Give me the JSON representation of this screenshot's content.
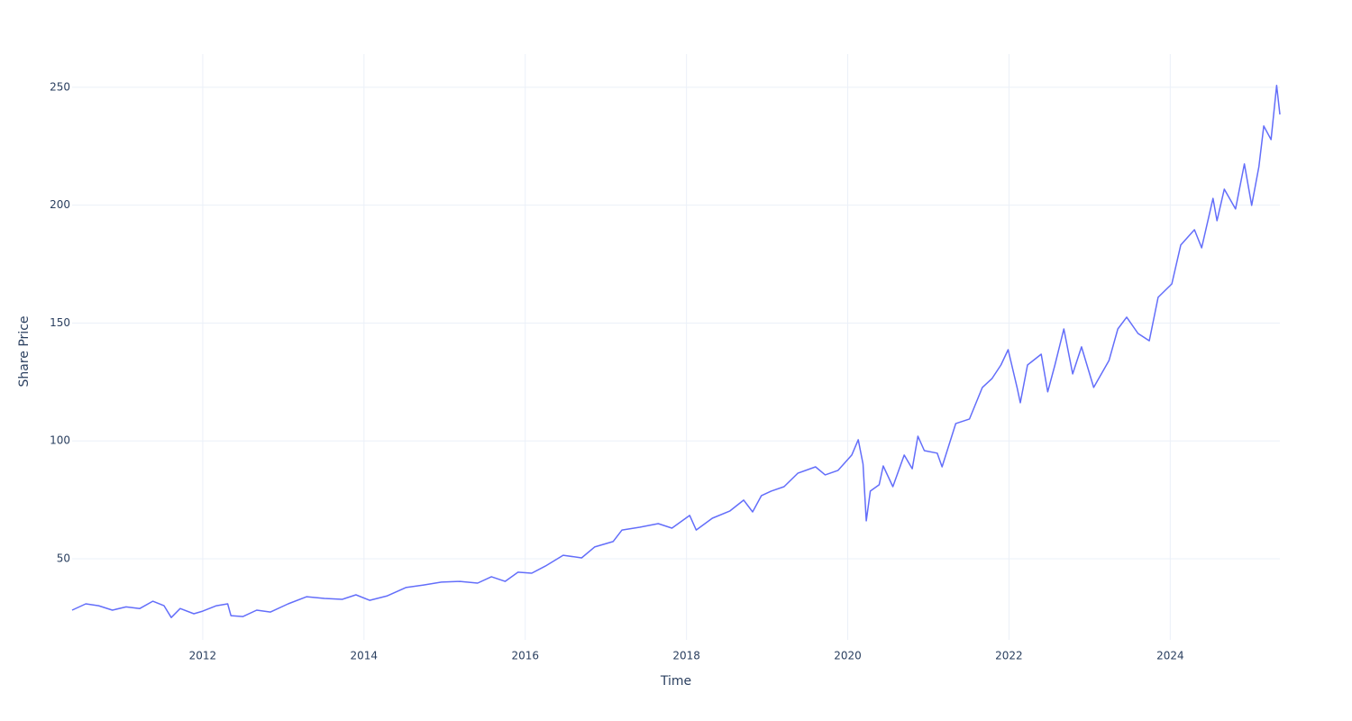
{
  "chart_data": {
    "type": "line",
    "x_label": "Time",
    "y_label": "Share Price",
    "color": "#636efa",
    "grid": true,
    "xlim": [
      2010.38,
      2025.36
    ],
    "xticks": [
      2012,
      2014,
      2016,
      2018,
      2020,
      2022,
      2024
    ],
    "ylim": [
      15.6,
      264.1
    ],
    "yticks": [
      50,
      100,
      150,
      200,
      250
    ],
    "x": [
      2010.38,
      2010.55,
      2010.71,
      2010.88,
      2011.05,
      2011.22,
      2011.38,
      2011.52,
      2011.61,
      2011.72,
      2011.89,
      2012.0,
      2012.17,
      2012.31,
      2012.35,
      2012.5,
      2012.67,
      2012.84,
      2013.06,
      2013.29,
      2013.51,
      2013.73,
      2013.9,
      2014.07,
      2014.29,
      2014.52,
      2014.74,
      2014.96,
      2015.19,
      2015.41,
      2015.58,
      2015.75,
      2015.91,
      2016.08,
      2016.25,
      2016.47,
      2016.7,
      2016.86,
      2017.09,
      2017.2,
      2017.42,
      2017.65,
      2017.82,
      2018.04,
      2018.12,
      2018.32,
      2018.54,
      2018.71,
      2018.82,
      2018.93,
      2019.05,
      2019.21,
      2019.38,
      2019.6,
      2019.72,
      2019.88,
      2020.05,
      2020.13,
      2020.19,
      2020.23,
      2020.28,
      2020.39,
      2020.44,
      2020.56,
      2020.7,
      2020.8,
      2020.87,
      2020.95,
      2021.11,
      2021.17,
      2021.34,
      2021.51,
      2021.67,
      2021.79,
      2021.9,
      2021.99,
      2022.1,
      2022.14,
      2022.23,
      2022.4,
      2022.48,
      2022.57,
      2022.68,
      2022.79,
      2022.9,
      2023.05,
      2023.24,
      2023.35,
      2023.46,
      2023.6,
      2023.74,
      2023.85,
      2024.02,
      2024.13,
      2024.3,
      2024.39,
      2024.53,
      2024.58,
      2024.67,
      2024.81,
      2024.92,
      2025.01,
      2025.1,
      2025.16,
      2025.25,
      2025.32,
      2025.36
    ],
    "values": [
      28.2,
      30.9,
      30.1,
      28.2,
      29.6,
      28.9,
      32.0,
      30.1,
      25.1,
      28.9,
      26.7,
      27.8,
      30.1,
      30.9,
      25.9,
      25.5,
      28.2,
      27.4,
      30.9,
      33.9,
      33.2,
      32.8,
      34.7,
      32.4,
      34.3,
      37.8,
      38.9,
      40.1,
      40.4,
      39.7,
      42.4,
      40.4,
      44.3,
      43.9,
      46.9,
      51.5,
      50.4,
      55.0,
      57.3,
      62.2,
      63.4,
      64.9,
      63.0,
      68.4,
      62.2,
      67.2,
      70.3,
      74.9,
      69.9,
      76.8,
      78.7,
      80.6,
      86.3,
      89.0,
      85.6,
      87.5,
      94.0,
      100.5,
      90.2,
      66.1,
      78.7,
      81.4,
      89.4,
      80.6,
      94.0,
      88.2,
      102.0,
      95.9,
      94.8,
      89.0,
      107.4,
      109.3,
      122.7,
      126.5,
      132.2,
      138.7,
      122.7,
      116.2,
      132.2,
      136.8,
      120.8,
      132.2,
      147.5,
      128.4,
      139.9,
      122.7,
      134.1,
      147.5,
      152.5,
      145.6,
      142.5,
      160.9,
      166.6,
      183.1,
      189.6,
      181.9,
      202.9,
      193.4,
      206.8,
      198.4,
      217.5,
      199.9,
      216.3,
      233.6,
      227.8,
      250.8,
      238.5
    ]
  }
}
